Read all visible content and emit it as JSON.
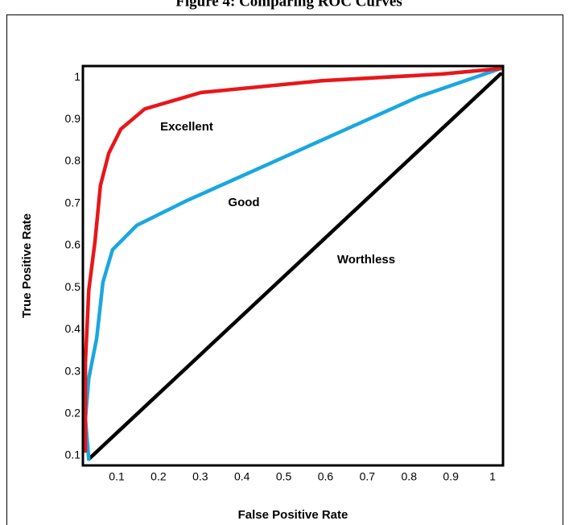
{
  "chart_data": {
    "type": "line",
    "title": "Figure 4: Comparing ROC Curves",
    "x_label": "False Positive Rate",
    "y_label": "True Positive Rate",
    "xlim": [
      0.019,
      1.025
    ],
    "ylim": [
      0.077,
      1.027
    ],
    "xticks": [
      0.1,
      0.2,
      0.3,
      0.4,
      0.5,
      0.6,
      0.7,
      0.8,
      0.9,
      1
    ],
    "yticks": [
      0.1,
      0.2,
      0.3,
      0.4,
      0.5,
      0.6,
      0.7,
      0.8,
      0.9,
      1
    ],
    "annotations": [
      "Excellent",
      "Good",
      "Worthless"
    ],
    "series": [
      {
        "color": "#e8161b",
        "x": [
          0.025,
          0.025,
          0.033,
          0.048,
          0.061,
          0.081,
          0.11,
          0.167,
          0.302,
          0.591,
          0.88,
          1.019
        ],
        "values": [
          0.111,
          0.322,
          0.494,
          0.609,
          0.743,
          0.82,
          0.877,
          0.925,
          0.964,
          0.992,
          1.008,
          1.021
        ]
      },
      {
        "color": "#1aa7e0",
        "x": [
          0.033,
          0.025,
          0.033,
          0.052,
          0.067,
          0.09,
          0.148,
          0.264,
          0.437,
          0.63,
          0.823,
          1.019
        ],
        "values": [
          0.092,
          0.188,
          0.284,
          0.379,
          0.513,
          0.59,
          0.648,
          0.705,
          0.782,
          0.868,
          0.954,
          1.021
        ]
      },
      {
        "color": "#000000",
        "x": [
          0.033,
          1.019
        ],
        "values": [
          0.092,
          1.008
        ]
      }
    ]
  }
}
